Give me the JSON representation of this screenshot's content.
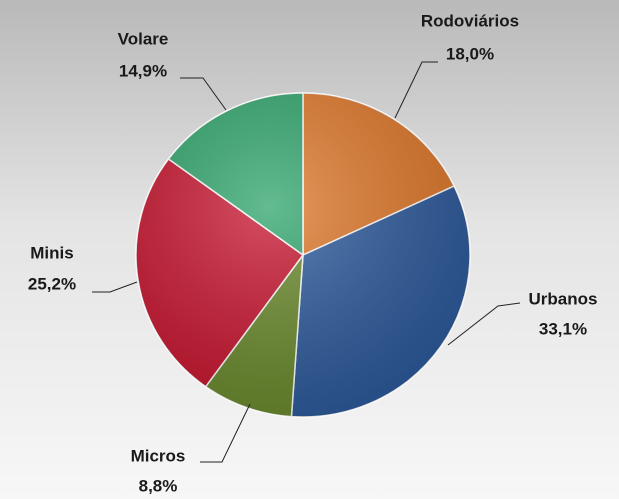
{
  "chart_data": {
    "type": "pie",
    "categories": [
      "Rodoviários",
      "Urbanos",
      "Micros",
      "Minis",
      "Volare"
    ],
    "values": [
      18.0,
      33.1,
      8.8,
      25.2,
      14.9
    ],
    "value_labels": [
      "18,0%",
      "33,1%",
      "8,8%",
      "25,2%",
      "14,9%"
    ],
    "colors": [
      "#e0782a",
      "#2c5a9c",
      "#6a8a2c",
      "#c8142e",
      "#2fa56c"
    ]
  }
}
